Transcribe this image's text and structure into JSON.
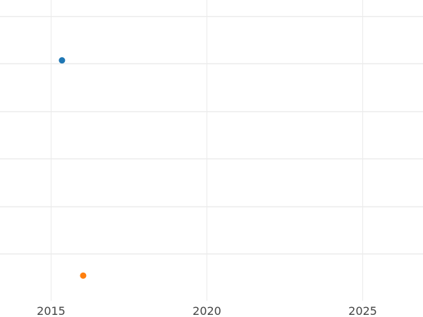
{
  "chart_data": {
    "type": "scatter",
    "title": "",
    "xlabel": "",
    "ylabel": "",
    "xlim": [
      2013.37,
      2026.95
    ],
    "ylim": [
      -0.99,
      5.34
    ],
    "x_ticks": [
      2015,
      2020,
      2025
    ],
    "x_tick_labels": [
      "2015",
      "2020",
      "2025"
    ],
    "y_gridlines": [
      0,
      1,
      2,
      3,
      4,
      5
    ],
    "y_tick_labels_shown": false,
    "grid": true,
    "series": [
      {
        "color": "#1f77b4",
        "points": [
          {
            "x": 2015.36,
            "y": 4.07
          }
        ]
      },
      {
        "color": "#ff7f0e",
        "points": [
          {
            "x": 2016.04,
            "y": -0.46
          }
        ]
      }
    ]
  }
}
